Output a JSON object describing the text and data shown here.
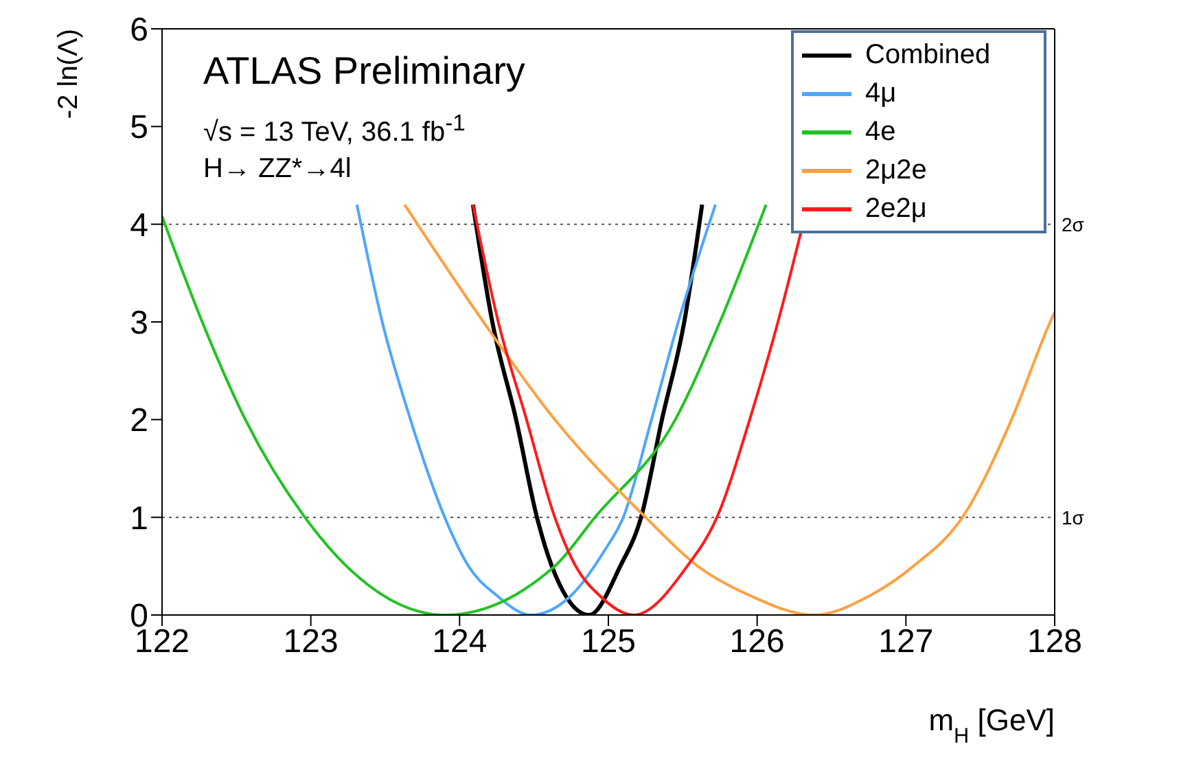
{
  "chart_data": {
    "type": "line",
    "title": "ATLAS Preliminary",
    "xlabel": "m$_{H}$ [GeV]",
    "ylabel": "-2 ln(Λ)",
    "annotations": [
      "√s = 13 TeV, 36.1 fb$^{-1}$",
      "H→ ZZ*→4l"
    ],
    "xlim": [
      122,
      128
    ],
    "xticks": [
      122,
      123,
      124,
      125,
      126,
      127,
      128
    ],
    "ylim": [
      0,
      6
    ],
    "yticks": [
      0,
      1,
      2,
      3,
      4,
      5,
      6
    ],
    "grid": false,
    "legend": "top right",
    "marker": "none",
    "line_style": "solid",
    "ref_lines": [
      {
        "axis": "y",
        "value": 4,
        "label": "2σ",
        "line_style": "dotted",
        "color": "#555555"
      },
      {
        "axis": "y",
        "value": 1,
        "label": "1σ",
        "line_style": "dotted",
        "color": "#555555"
      }
    ],
    "series": [
      {
        "name": "Combined",
        "color": "#000000",
        "x": [
          124.09,
          124.22,
          124.38,
          124.52,
          124.62,
          124.87,
          125.08,
          125.22,
          125.36,
          125.51,
          125.63
        ],
        "values": [
          4.2,
          3,
          2,
          1,
          0.5,
          0,
          0.5,
          1,
          2,
          3,
          4.2
        ]
      },
      {
        "name": "4μ",
        "color": "#4da6ff",
        "x": [
          123.31,
          123.48,
          123.67,
          123.9,
          124.06,
          124.25,
          124.48,
          124.75,
          124.97,
          125.1,
          125.29,
          125.47,
          125.72
        ],
        "values": [
          4.2,
          3,
          2,
          1,
          0.5,
          0.2,
          0,
          0.2,
          0.65,
          1,
          2,
          3,
          4.2
        ]
      },
      {
        "name": "4e",
        "color": "#22c322",
        "x": [
          122,
          122.27,
          122.56,
          122.96,
          123.24,
          123.9,
          124.64,
          124.91,
          125.45,
          125.75,
          126.06
        ],
        "values": [
          4.08,
          3,
          2,
          1,
          0.5,
          0,
          0.5,
          1,
          2,
          3,
          4.2
        ]
      },
      {
        "name": "2μ2e",
        "color": "#ffa040",
        "x": [
          123.63,
          124.16,
          124.64,
          125.25,
          125.6,
          125.95,
          126.38,
          126.76,
          127.05,
          127.38,
          127.71,
          127.97,
          128
        ],
        "values": [
          4.2,
          3,
          2,
          1,
          0.5,
          0.2,
          0,
          0.2,
          0.5,
          1,
          2,
          3,
          3.1
        ]
      },
      {
        "name": "2e2μ",
        "color": "#ff1a1a",
        "x": [
          124.09,
          124.26,
          124.45,
          124.64,
          124.78,
          124.94,
          125.17,
          125.53,
          125.73,
          125.95,
          126.14,
          126.34
        ],
        "values": [
          4.2,
          3,
          2,
          1,
          0.5,
          0.2,
          0,
          0.5,
          1,
          2,
          3,
          4.2
        ]
      }
    ]
  }
}
